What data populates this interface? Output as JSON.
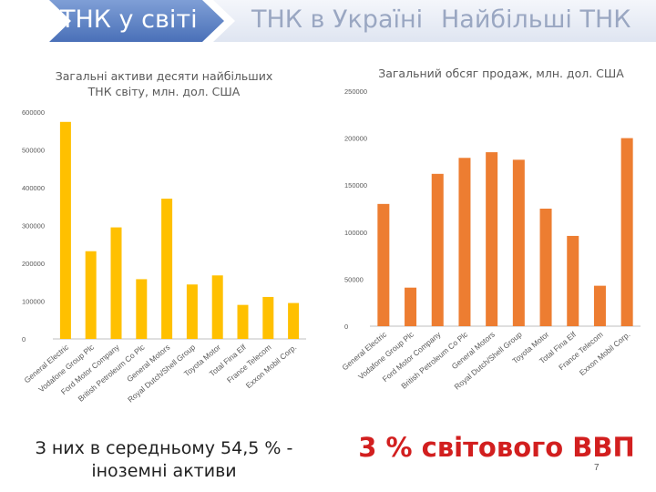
{
  "tabs": [
    {
      "label": "ТНК у світі",
      "active": true
    },
    {
      "label": "ТНК в Україні",
      "active": false
    },
    {
      "label": "Найбільші ТНК",
      "active": false
    }
  ],
  "chart_data": [
    {
      "type": "bar",
      "title": "Загальні активи десяти найбільших ТНК світу, млн. дол. США",
      "categories": [
        "General Electric",
        "Vodafone Group Plc",
        "Ford Motor Company",
        "British Petroleum Co Plc",
        "General Motors",
        "Royal Dutch/Shell Group",
        "Toyota Motor",
        "Total Fina Elf",
        "France Telecom",
        "Exxon Mobil Corp."
      ],
      "values": [
        574000,
        232000,
        295000,
        158000,
        371000,
        144000,
        168000,
        90000,
        111000,
        95000
      ],
      "ylim": [
        0,
        600000
      ],
      "yticks": [
        0,
        100000,
        200000,
        300000,
        400000,
        500000,
        600000
      ],
      "color": "#ffc000",
      "grid": false
    },
    {
      "type": "bar",
      "title": "Загальний обсяг продаж, млн. дол. США",
      "categories": [
        "General Electric",
        "Vodafone Group Plc",
        "Ford Motor Company",
        "British Petroleum Co Plc",
        "General Motors",
        "Royal Dutch/Shell Group",
        "Toyota Motor",
        "Total Fina Elf",
        "France Telecom",
        "Exxon Mobil Corp."
      ],
      "values": [
        130000,
        41000,
        162000,
        179000,
        185000,
        177000,
        125000,
        96000,
        43000,
        200000
      ],
      "ylim": [
        0,
        250000
      ],
      "yticks": [
        0,
        50000,
        100000,
        150000,
        200000,
        250000
      ],
      "color": "#ed7d31",
      "grid": false
    }
  ],
  "captions": {
    "left": "З них в середньому 54,5 % - іноземні активи",
    "right": "3 % світового ВВП"
  },
  "page_number": "7"
}
